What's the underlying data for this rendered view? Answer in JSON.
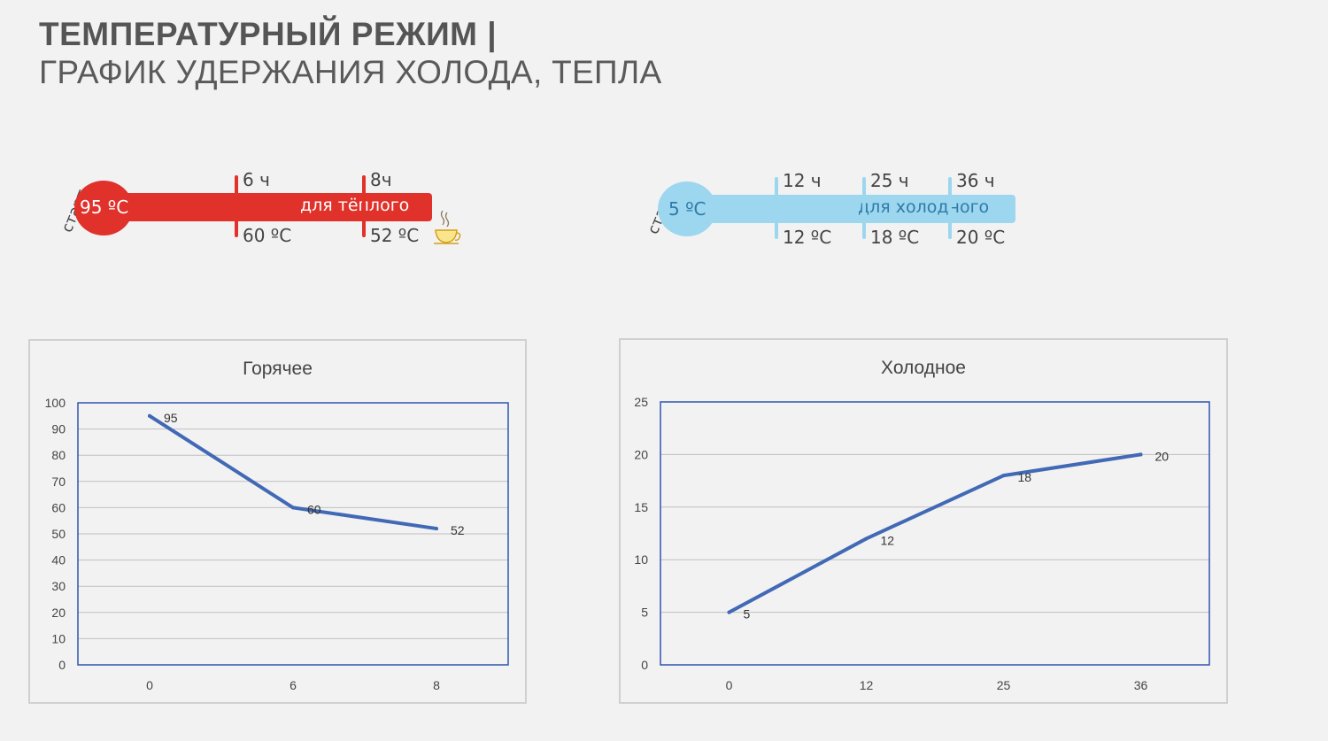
{
  "header": {
    "title_bold": "ТЕМПЕРАТУРНЫЙ РЕЖИМ |",
    "title_light": "ГРАФИК УДЕРЖАНИЯ ХОЛОДА, ТЕПЛА"
  },
  "hot_thermometer": {
    "start_label": "старт",
    "start_temp": "95 ºC",
    "tube_label": "для тёплого",
    "marks": [
      {
        "time": "6 ч",
        "temp": "60 ºC"
      },
      {
        "time": "8ч",
        "temp": "52 ºC"
      }
    ],
    "icon": "coffee-cup-icon",
    "color": "#e0312a"
  },
  "cold_thermometer": {
    "start_label": "старт",
    "start_temp": "5 ºC",
    "tube_label": "для холодного",
    "marks": [
      {
        "time": "12 ч",
        "temp": "12 ºC"
      },
      {
        "time": "25 ч",
        "temp": "18 ºC"
      },
      {
        "time": "36 ч",
        "temp": "20 ºC"
      }
    ],
    "color": "#9dd6ef"
  },
  "chart_data": [
    {
      "type": "line",
      "title": "Горячее",
      "categories": [
        "0",
        "6",
        "8"
      ],
      "values": [
        95,
        60,
        52
      ],
      "ylim": [
        0,
        100
      ],
      "yticks": [
        0,
        10,
        20,
        30,
        40,
        50,
        60,
        70,
        80,
        90,
        100
      ],
      "grid": true,
      "line_color": "#4169b5"
    },
    {
      "type": "line",
      "title": "Холодное",
      "categories": [
        "0",
        "12",
        "25",
        "36"
      ],
      "values": [
        5,
        12,
        18,
        20
      ],
      "ylim": [
        0,
        25
      ],
      "yticks": [
        0,
        5,
        10,
        15,
        20,
        25
      ],
      "grid": true,
      "line_color": "#4169b5"
    }
  ]
}
